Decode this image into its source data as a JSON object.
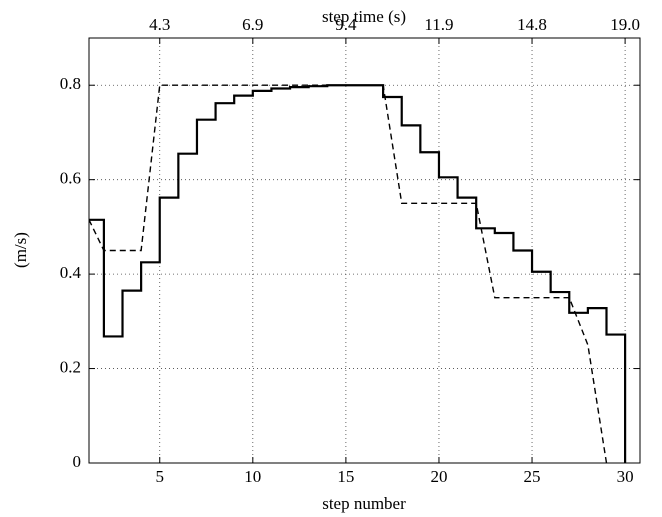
{
  "chart_data": {
    "type": "line",
    "xlabel": "step number",
    "x2label": "step time (s)",
    "ylabel": "(m/s)",
    "xlim": [
      1.2,
      30.8
    ],
    "ylim": [
      0,
      0.9
    ],
    "xticks": [
      5,
      10,
      15,
      20,
      25,
      30
    ],
    "x2ticks": [
      {
        "value": 5,
        "label": "4.3"
      },
      {
        "value": 10,
        "label": "6.9"
      },
      {
        "value": 15,
        "label": "9.4"
      },
      {
        "value": 20,
        "label": "11.9"
      },
      {
        "value": 25,
        "label": "14.8"
      },
      {
        "value": 30,
        "label": "19.0"
      }
    ],
    "yticks": [
      0,
      0.2,
      0.4,
      0.6,
      0.8
    ],
    "grid": true,
    "series": [
      {
        "style": "solid-step",
        "color": "#000000",
        "x": [
          1,
          2,
          3,
          4,
          5,
          6,
          7,
          8,
          9,
          10,
          11,
          12,
          13,
          14,
          15,
          16,
          17,
          18,
          19,
          20,
          21,
          22,
          23,
          24,
          25,
          26,
          27,
          28,
          29,
          30
        ],
        "values": [
          0.515,
          0.268,
          0.365,
          0.425,
          0.562,
          0.655,
          0.727,
          0.762,
          0.778,
          0.788,
          0.793,
          0.796,
          0.798,
          0.8,
          0.8,
          0.8,
          0.775,
          0.715,
          0.658,
          0.605,
          0.562,
          0.497,
          0.487,
          0.45,
          0.405,
          0.362,
          0.318,
          0.328,
          0.272,
          0
        ]
      },
      {
        "style": "dashed",
        "color": "#000000",
        "x": [
          1.2,
          2,
          4,
          5,
          17,
          18,
          22,
          23,
          27,
          28,
          29
        ],
        "values": [
          0.515,
          0.45,
          0.45,
          0.8,
          0.8,
          0.55,
          0.55,
          0.35,
          0.35,
          0.25,
          0
        ]
      }
    ]
  }
}
